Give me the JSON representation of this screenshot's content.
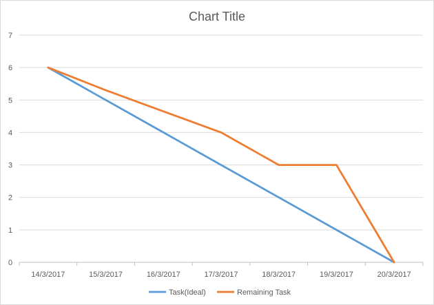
{
  "chart_data": {
    "type": "line",
    "title": "Chart Title",
    "xlabel": "",
    "ylabel": "",
    "categories": [
      "14/3/2017",
      "15/3/2017",
      "16/3/2017",
      "17/3/2017",
      "18/3/2017",
      "19/3/2017",
      "20/3/2017"
    ],
    "ylim": [
      0,
      7
    ],
    "yticks": [
      "0",
      "1",
      "2",
      "3",
      "4",
      "5",
      "6",
      "7"
    ],
    "grid": true,
    "legend_position": "bottom",
    "series": [
      {
        "name": "Task(Ideal)",
        "values": [
          6,
          5,
          4,
          3,
          2,
          1,
          0
        ],
        "color": "#5b9bd5"
      },
      {
        "name": "Remaining Task",
        "values": [
          6,
          5.3,
          4.65,
          4,
          3,
          3,
          0
        ],
        "color": "#ed7d31"
      }
    ]
  }
}
